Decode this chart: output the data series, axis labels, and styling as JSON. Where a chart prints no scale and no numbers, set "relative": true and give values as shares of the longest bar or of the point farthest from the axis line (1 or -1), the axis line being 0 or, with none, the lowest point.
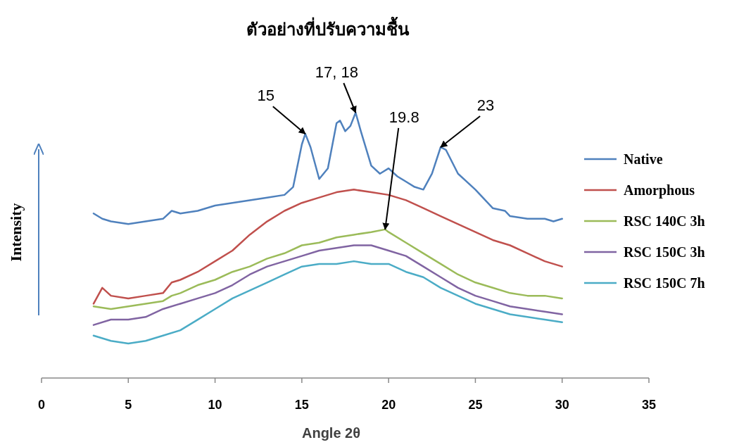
{
  "chart_data": {
    "type": "line",
    "title": "ตัวอย่างที่ปรับความชื้น",
    "xlabel": "Angle 2θ",
    "ylabel": "Intensity",
    "relative": true,
    "xlim": [
      0,
      35
    ],
    "xticks": [
      0,
      5,
      10,
      15,
      20,
      25,
      30,
      35
    ],
    "grid": false,
    "legend": "right",
    "line_style": "solid",
    "annotations": [
      {
        "text": "15",
        "x": 15.2,
        "y": 0.92
      },
      {
        "text": "17, 18",
        "x": 18.1,
        "y": 1
      },
      {
        "text": "23",
        "x": 23,
        "y": 0.87
      },
      {
        "text": "19.8",
        "x": 19.8,
        "y": 0.56
      }
    ],
    "series": [
      {
        "name": "Native",
        "color": "#4f81bd",
        "x": [
          3,
          3.5,
          4,
          5,
          6,
          7,
          7.5,
          8,
          9,
          10,
          11,
          12,
          13,
          14,
          14.5,
          15,
          15.2,
          15.5,
          16,
          16.5,
          17,
          17.2,
          17.5,
          17.8,
          18.1,
          18.4,
          19,
          19.5,
          20,
          20.5,
          21,
          21.5,
          22,
          22.5,
          23,
          23.3,
          24,
          25,
          26,
          26.7,
          27,
          28,
          29,
          29.5,
          30
        ],
        "values": [
          0.62,
          0.6,
          0.59,
          0.58,
          0.59,
          0.6,
          0.63,
          0.62,
          0.63,
          0.65,
          0.66,
          0.67,
          0.68,
          0.69,
          0.72,
          0.88,
          0.92,
          0.87,
          0.75,
          0.79,
          0.96,
          0.97,
          0.93,
          0.95,
          1,
          0.93,
          0.8,
          0.77,
          0.79,
          0.76,
          0.74,
          0.72,
          0.71,
          0.77,
          0.87,
          0.86,
          0.77,
          0.71,
          0.64,
          0.63,
          0.61,
          0.6,
          0.6,
          0.59,
          0.6
        ]
      },
      {
        "name": "Amorphous",
        "color": "#c0504d",
        "x": [
          3,
          3.5,
          4,
          5,
          6,
          7,
          7.5,
          8,
          9,
          10,
          11,
          12,
          13,
          14,
          15,
          16,
          17,
          18,
          19,
          20,
          21,
          22,
          23,
          24,
          25,
          26,
          27,
          28,
          29,
          30
        ],
        "values": [
          0.28,
          0.34,
          0.31,
          0.3,
          0.31,
          0.32,
          0.36,
          0.37,
          0.4,
          0.44,
          0.48,
          0.54,
          0.59,
          0.63,
          0.66,
          0.68,
          0.7,
          0.71,
          0.7,
          0.69,
          0.67,
          0.64,
          0.61,
          0.58,
          0.55,
          0.52,
          0.5,
          0.47,
          0.44,
          0.42
        ]
      },
      {
        "name": "RSC 140C 3h",
        "color": "#9bbb59",
        "x": [
          3,
          4,
          5,
          6,
          7,
          7.5,
          8,
          9,
          10,
          11,
          12,
          13,
          14,
          15,
          16,
          17,
          18,
          19,
          19.8,
          20,
          21,
          22,
          23,
          24,
          25,
          26,
          27,
          28,
          29,
          30
        ],
        "values": [
          0.27,
          0.26,
          0.27,
          0.28,
          0.29,
          0.31,
          0.32,
          0.35,
          0.37,
          0.4,
          0.42,
          0.45,
          0.47,
          0.5,
          0.51,
          0.53,
          0.54,
          0.55,
          0.56,
          0.55,
          0.51,
          0.47,
          0.43,
          0.39,
          0.36,
          0.34,
          0.32,
          0.31,
          0.31,
          0.3
        ]
      },
      {
        "name": "RSC 150C 3h",
        "color": "#8064a2",
        "x": [
          3,
          4,
          5,
          6,
          7,
          8,
          9,
          10,
          11,
          12,
          13,
          14,
          15,
          16,
          17,
          18,
          19,
          20,
          21,
          22,
          23,
          24,
          25,
          26,
          27,
          28,
          29,
          30
        ],
        "values": [
          0.2,
          0.22,
          0.22,
          0.23,
          0.26,
          0.28,
          0.3,
          0.32,
          0.35,
          0.39,
          0.42,
          0.44,
          0.46,
          0.48,
          0.49,
          0.5,
          0.5,
          0.48,
          0.46,
          0.42,
          0.38,
          0.34,
          0.31,
          0.29,
          0.27,
          0.26,
          0.25,
          0.24
        ]
      },
      {
        "name": "RSC 150C 7h",
        "color": "#4bacc6",
        "x": [
          3,
          4,
          5,
          6,
          7,
          8,
          9,
          10,
          11,
          12,
          13,
          14,
          15,
          16,
          17,
          18,
          19,
          20,
          21,
          22,
          23,
          24,
          25,
          26,
          27,
          28,
          29,
          30
        ],
        "values": [
          0.16,
          0.14,
          0.13,
          0.14,
          0.16,
          0.18,
          0.22,
          0.26,
          0.3,
          0.33,
          0.36,
          0.39,
          0.42,
          0.43,
          0.43,
          0.44,
          0.43,
          0.43,
          0.4,
          0.38,
          0.34,
          0.31,
          0.28,
          0.26,
          0.24,
          0.23,
          0.22,
          0.21
        ]
      }
    ]
  }
}
